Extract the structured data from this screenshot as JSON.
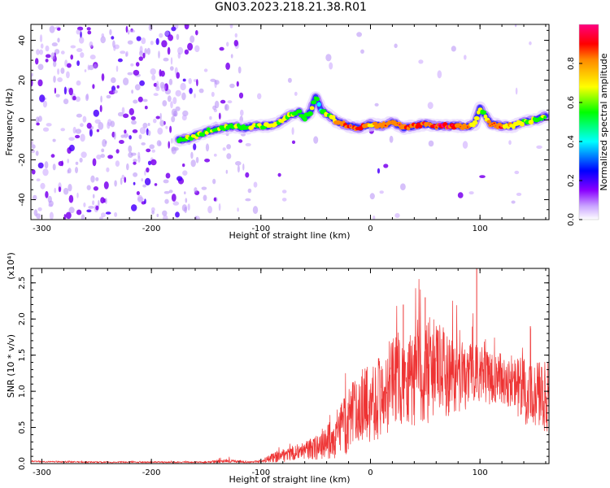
{
  "page": {
    "title": "GN03.2023.218.21.38.R01"
  },
  "chart_data": [
    {
      "type": "heatmap",
      "title": "GN03.2023.218.21.38.R01",
      "xlabel": "Height of straight line (km)",
      "ylabel": "Frequency (Hz)",
      "xlim": [
        -310,
        163
      ],
      "ylim": [
        -50,
        48
      ],
      "xticks": [
        -300,
        -200,
        -100,
        0,
        100
      ],
      "yticks": [
        -40,
        -20,
        0,
        20,
        40
      ],
      "colorbar": {
        "label": "Normalized spectral amplitude",
        "range": [
          0,
          1
        ],
        "ticks": [
          "0.0",
          "0.2",
          "0.4",
          "0.6",
          "0.8"
        ],
        "colormap": [
          "#ffffff",
          "#8a00ff",
          "#0000ff",
          "#00ffff",
          "#00ff00",
          "#ffff00",
          "#ff0000",
          "#ff00aa"
        ]
      },
      "ridge": {
        "x": [
          -175,
          -165,
          -155,
          -145,
          -135,
          -125,
          -115,
          -105,
          -95,
          -85,
          -75,
          -65,
          -60,
          -55,
          -50,
          -45,
          -40,
          -35,
          -30,
          -20,
          -10,
          0,
          10,
          20,
          30,
          40,
          50,
          60,
          70,
          80,
          90,
          95,
          100,
          110,
          120,
          130,
          140,
          150,
          160
        ],
        "y": [
          -10,
          -9,
          -7,
          -5,
          -4,
          -3,
          -4,
          -3,
          -3,
          -2,
          2,
          4,
          1,
          4,
          12,
          5,
          3,
          1,
          -1,
          -3,
          -4,
          -2,
          -3,
          -1,
          -4,
          -3,
          -2,
          -3,
          -3,
          -3,
          -3,
          -2,
          6,
          -2,
          -3,
          -3,
          -1,
          0,
          2
        ],
        "amplitude": [
          0.5,
          0.55,
          0.55,
          0.5,
          0.5,
          0.5,
          0.5,
          0.55,
          0.6,
          0.6,
          0.55,
          0.5,
          0.45,
          0.55,
          0.45,
          0.45,
          0.55,
          0.6,
          0.7,
          0.85,
          0.8,
          0.7,
          0.7,
          0.75,
          0.8,
          0.85,
          0.8,
          0.85,
          0.85,
          0.8,
          0.75,
          0.6,
          0.55,
          0.7,
          0.8,
          0.6,
          0.5,
          0.5,
          0.5
        ]
      }
    },
    {
      "type": "line",
      "xlabel": "Height of straight line (km)",
      "ylabel": "SNR (10 * v/v)",
      "yscale_label": "(x10⁴)",
      "xlim": [
        -310,
        163
      ],
      "ylim": [
        0,
        2.7
      ],
      "xticks": [
        -300,
        -200,
        -100,
        0,
        100
      ],
      "yticks": [
        "0.0",
        "0.5",
        "1.0",
        "1.5",
        "2.0",
        "2.5"
      ],
      "color": "#ee3333",
      "series": [
        {
          "x": [
            -310,
            -250,
            -200,
            -150,
            -130,
            -110,
            -100,
            -90,
            -80,
            -70,
            -60,
            -50,
            -40,
            -30,
            -20,
            -10,
            0,
            10,
            20,
            30,
            40,
            50,
            60,
            70,
            80,
            90,
            96,
            100,
            110,
            120,
            130,
            140,
            150,
            160
          ],
          "y": [
            0.03,
            0.02,
            0.02,
            0.02,
            0.04,
            0.02,
            0.03,
            0.08,
            0.12,
            0.15,
            0.18,
            0.22,
            0.3,
            0.4,
            0.6,
            0.8,
            0.85,
            0.95,
            1.1,
            1.2,
            1.25,
            1.3,
            1.3,
            1.25,
            1.2,
            1.2,
            1.3,
            1.25,
            1.15,
            1.2,
            1.1,
            1.0,
            1.0,
            0.9
          ],
          "spread": [
            0.01,
            0.01,
            0.01,
            0.01,
            0.03,
            0.01,
            0.02,
            0.06,
            0.1,
            0.1,
            0.12,
            0.18,
            0.25,
            0.35,
            0.45,
            0.5,
            0.55,
            0.6,
            0.65,
            0.7,
            0.75,
            0.75,
            0.7,
            0.6,
            0.5,
            0.45,
            0.4,
            0.4,
            0.35,
            0.35,
            0.4,
            0.45,
            0.5,
            0.5
          ]
        }
      ],
      "spikes": [
        {
          "x": 97,
          "y": 2.7
        },
        {
          "x": 50,
          "y": 2.3
        },
        {
          "x": 30,
          "y": 2.2
        },
        {
          "x": 146,
          "y": 1.9
        }
      ]
    }
  ]
}
